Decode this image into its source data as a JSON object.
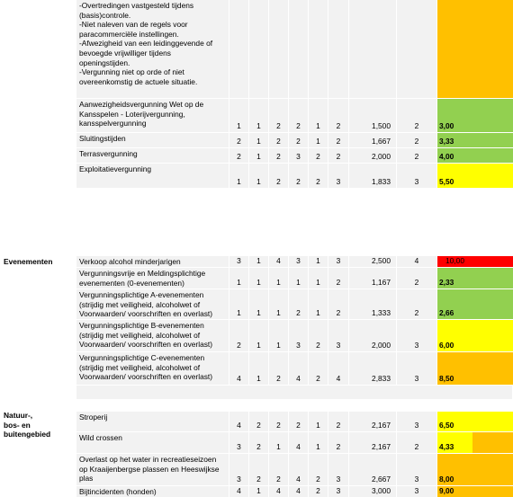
{
  "colors": {
    "green": "#92d050",
    "yellow": "#ffff00",
    "orange": "#ffc000",
    "red": "#ff0000",
    "grey": "#f2f2f2"
  },
  "top_rows": [
    {
      "text": "-Overtredingen vastgesteld tijdens\n(basis)controle.\n-Niet naleven van de regels voor\nparacommerciële instellingen.\n-Afwezigheid van een leidinggevende of\nbevoegde vrijwilliger tijdens\nopeningstijden.\n-Vergunning niet op orde of niet\novereenkomstig de actuele situatie.",
      "values": [
        "",
        "",
        "",
        "",
        "",
        "",
        "",
        ""
      ],
      "score": "",
      "score_color": "orange",
      "next_color": "orange"
    },
    {
      "text": "Aanwezigheidsvergunning Wet op de\nKansspelen - Loterijvergunning,\nkansspelvergunning",
      "values": [
        "1",
        "1",
        "2",
        "2",
        "1",
        "2",
        "1,500",
        "2"
      ],
      "score": "3,00",
      "score_color": "green",
      "next_color": "green"
    },
    {
      "text": "Sluitingstijden",
      "values": [
        "2",
        "1",
        "2",
        "2",
        "1",
        "2",
        "1,667",
        "2"
      ],
      "score": "3,33",
      "score_color": "green",
      "next_color": "green"
    },
    {
      "text": "Terrasvergunning",
      "values": [
        "2",
        "1",
        "2",
        "3",
        "2",
        "2",
        "2,000",
        "2"
      ],
      "score": "4,00",
      "score_color": "green",
      "next_color": "green"
    },
    {
      "text": "Exploitatievergunning",
      "values": [
        "1",
        "1",
        "2",
        "2",
        "2",
        "3",
        "1,833",
        "3"
      ],
      "score": "5,50",
      "score_color": "yellow",
      "next_color": "yellow"
    }
  ],
  "evenementen": {
    "label": "Evenementen",
    "rows": [
      {
        "text": "Verkoop alcohol minderjarigen",
        "values": [
          "3",
          "1",
          "4",
          "3",
          "1",
          "3",
          "2,500",
          "4"
        ],
        "score": "10,00",
        "score_color": "red",
        "next_color": "red"
      },
      {
        "text": "Vergunningsvrije en Meldingsplichtige\nevenementen (0-evenementen)",
        "values": [
          "1",
          "1",
          "1",
          "1",
          "1",
          "2",
          "1,167",
          "2"
        ],
        "score": "2,33",
        "score_color": "green",
        "next_color": "green"
      },
      {
        "text": "Vergunningsplichtige A-evenementen\n(strijdig met veiligheid, alcoholwet of\nVoorwaarden/ voorschriften en overlast)",
        "values": [
          "1",
          "1",
          "1",
          "2",
          "1",
          "2",
          "1,333",
          "2"
        ],
        "score": "2,66",
        "score_color": "green",
        "next_color": "green"
      },
      {
        "text": "Vergunningsplichtige B-evenementen\n(strijdig met veiligheid, alcoholwet of\nVoorwaarden/ voorschriften en overlast)",
        "values": [
          "2",
          "1",
          "1",
          "3",
          "2",
          "3",
          "2,000",
          "3"
        ],
        "score": "6,00",
        "score_color": "yellow",
        "next_color": "yellow"
      },
      {
        "text": "Vergunningsplichtige C-evenementen\n(strijdig met veiligheid, alcoholwet of\nVoorwaarden/ voorschriften en overlast)",
        "values": [
          "4",
          "1",
          "2",
          "4",
          "2",
          "4",
          "2,833",
          "3"
        ],
        "score": "8,50",
        "score_color": "orange",
        "next_color": "orange"
      }
    ]
  },
  "natuur": {
    "label": "Natuur-,\nbos- en\nbuitengebied",
    "rows": [
      {
        "text": "Stroperij",
        "values": [
          "4",
          "2",
          "2",
          "2",
          "1",
          "2",
          "2,167",
          "3"
        ],
        "score": "6,50",
        "score_color": "yellow",
        "next_color": "yellow"
      },
      {
        "text": "Wild crossen",
        "values": [
          "3",
          "2",
          "1",
          "4",
          "1",
          "2",
          "2,167",
          "2"
        ],
        "score": "4,33",
        "score_color": "yellow",
        "next_color": "orange"
      },
      {
        "text": "Overlast op het water in recreatieseizoen\nop Kraaijenbergse plassen en Heeswijkse\nplas",
        "values": [
          "3",
          "2",
          "2",
          "4",
          "2",
          "3",
          "2,667",
          "3"
        ],
        "score": "8,00",
        "score_color": "orange",
        "next_color": "orange"
      },
      {
        "text": "Bijtincidenten (honden)",
        "values": [
          "4",
          "1",
          "4",
          "4",
          "2",
          "3",
          "3,000",
          "3"
        ],
        "score": "9,00",
        "score_color": "orange",
        "next_color": "orange"
      }
    ]
  }
}
